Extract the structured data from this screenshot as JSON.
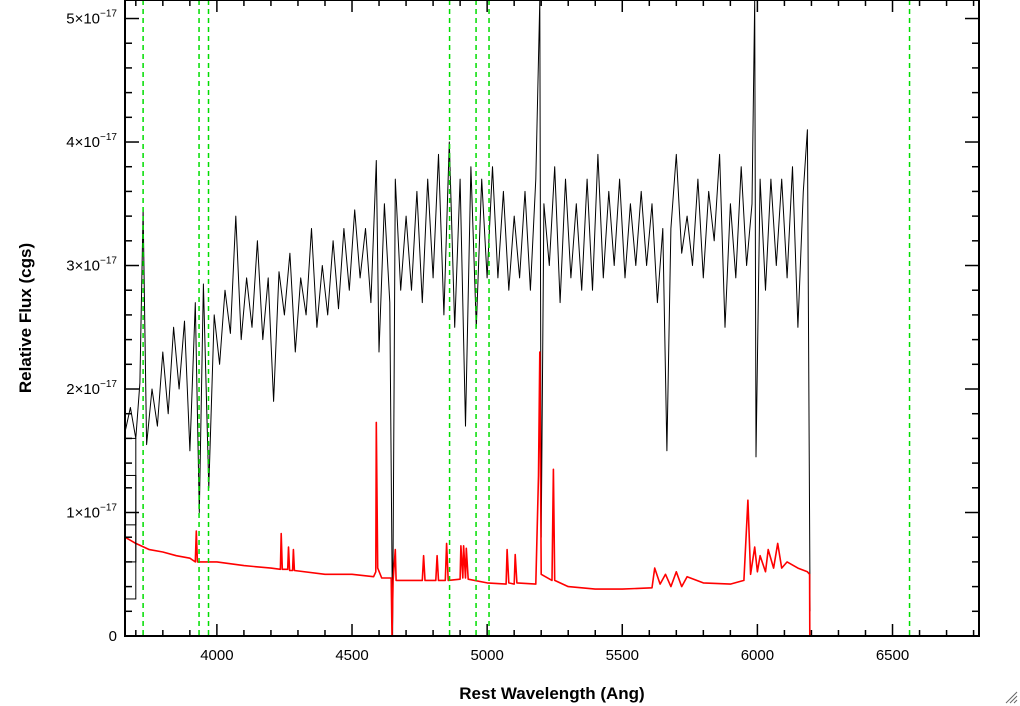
{
  "chart_data": {
    "type": "line",
    "xlabel": "Rest Wavelength (Ang)",
    "ylabel": "Relative Flux (cgs)",
    "xlim": [
      3660,
      6820
    ],
    "ylim": [
      0,
      5.15e-17
    ],
    "x_ticks": [
      {
        "value": 4000,
        "label": "4000"
      },
      {
        "value": 4500,
        "label": "4500"
      },
      {
        "value": 5000,
        "label": "5000"
      },
      {
        "value": 5500,
        "label": "5500"
      },
      {
        "value": 6000,
        "label": "6000"
      },
      {
        "value": 6500,
        "label": "6500"
      }
    ],
    "y_ticks": [
      {
        "value": 0,
        "mant": "0",
        "exp": ""
      },
      {
        "value": 1e-17,
        "mant": "1×10",
        "exp": "−17"
      },
      {
        "value": 2e-17,
        "mant": "2×10",
        "exp": "−17"
      },
      {
        "value": 3e-17,
        "mant": "3×10",
        "exp": "−17"
      },
      {
        "value": 4e-17,
        "mant": "4×10",
        "exp": "−17"
      },
      {
        "value": 5e-17,
        "mant": "5×10",
        "exp": "−17"
      }
    ],
    "vertical_lines": {
      "color": "#00dd00",
      "style": "dashed",
      "x": [
        3727,
        3934,
        3969,
        4861,
        4959,
        5007,
        6563
      ]
    },
    "series": [
      {
        "color": "#000000",
        "end_x": 6195,
        "points": [
          [
            3660,
            1.65e-17
          ],
          [
            3680,
            1.85e-17
          ],
          [
            3700,
            1.6e-17
          ],
          [
            3715,
            2.05e-17
          ],
          [
            3727,
            3.45e-17
          ],
          [
            3740,
            1.55e-17
          ],
          [
            3760,
            2e-17
          ],
          [
            3780,
            1.7e-17
          ],
          [
            3800,
            2.3e-17
          ],
          [
            3820,
            1.8e-17
          ],
          [
            3840,
            2.5e-17
          ],
          [
            3860,
            2e-17
          ],
          [
            3880,
            2.55e-17
          ],
          [
            3900,
            1.5e-17
          ],
          [
            3920,
            2.7e-17
          ],
          [
            3935,
            1e-17
          ],
          [
            3950,
            2.85e-17
          ],
          [
            3970,
            1.2e-17
          ],
          [
            3990,
            2.6e-17
          ],
          [
            4010,
            2.2e-17
          ],
          [
            4030,
            2.8e-17
          ],
          [
            4050,
            2.45e-17
          ],
          [
            4070,
            3.4e-17
          ],
          [
            4090,
            2.4e-17
          ],
          [
            4110,
            2.9e-17
          ],
          [
            4130,
            2.5e-17
          ],
          [
            4150,
            3.2e-17
          ],
          [
            4170,
            2.4e-17
          ],
          [
            4190,
            2.9e-17
          ],
          [
            4210,
            1.9e-17
          ],
          [
            4230,
            2.95e-17
          ],
          [
            4250,
            2.6e-17
          ],
          [
            4270,
            3.1e-17
          ],
          [
            4290,
            2.3e-17
          ],
          [
            4310,
            2.9e-17
          ],
          [
            4330,
            2.6e-17
          ],
          [
            4350,
            3.3e-17
          ],
          [
            4370,
            2.5e-17
          ],
          [
            4390,
            3e-17
          ],
          [
            4410,
            2.6e-17
          ],
          [
            4430,
            3.2e-17
          ],
          [
            4450,
            2.65e-17
          ],
          [
            4470,
            3.3e-17
          ],
          [
            4490,
            2.8e-17
          ],
          [
            4510,
            3.45e-17
          ],
          [
            4530,
            2.9e-17
          ],
          [
            4550,
            3.3e-17
          ],
          [
            4570,
            2.7e-17
          ],
          [
            4590,
            3.85e-17
          ],
          [
            4600,
            2.3e-17
          ],
          [
            4620,
            3.5e-17
          ],
          [
            4640,
            2.7e-17
          ],
          [
            4650,
            0.0
          ],
          [
            4660,
            3.7e-17
          ],
          [
            4680,
            2.8e-17
          ],
          [
            4700,
            3.4e-17
          ],
          [
            4720,
            2.8e-17
          ],
          [
            4740,
            3.6e-17
          ],
          [
            4760,
            2.7e-17
          ],
          [
            4780,
            3.7e-17
          ],
          [
            4800,
            2.9e-17
          ],
          [
            4820,
            3.9e-17
          ],
          [
            4840,
            2.6e-17
          ],
          [
            4860,
            4e-17
          ],
          [
            4880,
            2.5e-17
          ],
          [
            4900,
            3.7e-17
          ],
          [
            4920,
            1.7e-17
          ],
          [
            4940,
            3.8e-17
          ],
          [
            4960,
            2.5e-17
          ],
          [
            4980,
            3.7e-17
          ],
          [
            5000,
            2.9e-17
          ],
          [
            5020,
            3.8e-17
          ],
          [
            5040,
            2.9e-17
          ],
          [
            5060,
            3.6e-17
          ],
          [
            5080,
            2.8e-17
          ],
          [
            5100,
            3.4e-17
          ],
          [
            5120,
            2.9e-17
          ],
          [
            5140,
            3.6e-17
          ],
          [
            5160,
            2.8e-17
          ],
          [
            5180,
            3.7e-17
          ],
          [
            5195,
            5.15e-17
          ],
          [
            5200,
            8e-18
          ],
          [
            5210,
            3.5e-17
          ],
          [
            5230,
            3e-17
          ],
          [
            5250,
            3.8e-17
          ],
          [
            5270,
            2.7e-17
          ],
          [
            5290,
            3.7e-17
          ],
          [
            5310,
            2.9e-17
          ],
          [
            5330,
            3.5e-17
          ],
          [
            5350,
            2.8e-17
          ],
          [
            5370,
            3.7e-17
          ],
          [
            5390,
            2.8e-17
          ],
          [
            5410,
            3.9e-17
          ],
          [
            5430,
            2.9e-17
          ],
          [
            5450,
            3.6e-17
          ],
          [
            5470,
            3e-17
          ],
          [
            5490,
            3.7e-17
          ],
          [
            5510,
            2.9e-17
          ],
          [
            5530,
            3.5e-17
          ],
          [
            5550,
            3e-17
          ],
          [
            5570,
            3.6e-17
          ],
          [
            5590,
            3e-17
          ],
          [
            5610,
            3.5e-17
          ],
          [
            5630,
            2.7e-17
          ],
          [
            5650,
            3.3e-17
          ],
          [
            5665,
            1.5e-17
          ],
          [
            5680,
            3.3e-17
          ],
          [
            5700,
            3.9e-17
          ],
          [
            5720,
            3.1e-17
          ],
          [
            5740,
            3.4e-17
          ],
          [
            5760,
            3e-17
          ],
          [
            5780,
            3.7e-17
          ],
          [
            5800,
            2.9e-17
          ],
          [
            5820,
            3.6e-17
          ],
          [
            5840,
            3.2e-17
          ],
          [
            5860,
            3.9e-17
          ],
          [
            5880,
            2.5e-17
          ],
          [
            5900,
            3.5e-17
          ],
          [
            5920,
            2.9e-17
          ],
          [
            5940,
            3.8e-17
          ],
          [
            5960,
            3e-17
          ],
          [
            5980,
            3.5e-17
          ],
          [
            5990,
            5.15e-17
          ],
          [
            5995,
            1.45e-17
          ],
          [
            6010,
            3.7e-17
          ],
          [
            6030,
            2.8e-17
          ],
          [
            6050,
            3.7e-17
          ],
          [
            6070,
            3e-17
          ],
          [
            6090,
            3.7e-17
          ],
          [
            6110,
            2.9e-17
          ],
          [
            6130,
            3.8e-17
          ],
          [
            6150,
            2.5e-17
          ],
          [
            6170,
            3.6e-17
          ],
          [
            6185,
            4.1e-17
          ],
          [
            6195,
            2e-18
          ]
        ]
      },
      {
        "color": "#ff0000",
        "points": [
          [
            3660,
            8e-18
          ],
          [
            3700,
            7.5e-18
          ],
          [
            3750,
            7e-18
          ],
          [
            3800,
            6.8e-18
          ],
          [
            3850,
            6.5e-18
          ],
          [
            3900,
            6.3e-18
          ],
          [
            3920,
            6e-18
          ],
          [
            3924,
            8.5e-18
          ],
          [
            3928,
            6e-18
          ],
          [
            4000,
            6e-18
          ],
          [
            4100,
            5.7e-18
          ],
          [
            4200,
            5.5e-18
          ],
          [
            4235,
            5.4e-18
          ],
          [
            4238,
            8.3e-18
          ],
          [
            4242,
            5.4e-18
          ],
          [
            4262,
            5.4e-18
          ],
          [
            4265,
            7.2e-18
          ],
          [
            4269,
            5.3e-18
          ],
          [
            4280,
            5.3e-18
          ],
          [
            4283,
            7e-18
          ],
          [
            4287,
            5.3e-18
          ],
          [
            4400,
            5e-18
          ],
          [
            4500,
            5e-18
          ],
          [
            4580,
            4.8e-18
          ],
          [
            4588,
            5.2e-18
          ],
          [
            4590,
            1.73e-17
          ],
          [
            4595,
            5.5e-18
          ],
          [
            4610,
            4.7e-18
          ],
          [
            4645,
            4.7e-18
          ],
          [
            4648,
            0.0
          ],
          [
            4652,
            4.5e-18
          ],
          [
            4660,
            7e-18
          ],
          [
            4663,
            4.5e-18
          ],
          [
            4760,
            4.5e-18
          ],
          [
            4765,
            6.5e-18
          ],
          [
            4770,
            4.5e-18
          ],
          [
            4810,
            4.5e-18
          ],
          [
            4815,
            6.5e-18
          ],
          [
            4820,
            4.5e-18
          ],
          [
            4845,
            4.5e-18
          ],
          [
            4850,
            7.5e-18
          ],
          [
            4856,
            4.5e-18
          ],
          [
            4900,
            4.6e-18
          ],
          [
            4903,
            7.3e-18
          ],
          [
            4910,
            4.7e-18
          ],
          [
            4913,
            7.3e-18
          ],
          [
            4920,
            4.7e-18
          ],
          [
            4923,
            7.1e-18
          ],
          [
            4930,
            4.6e-18
          ],
          [
            5000,
            4.3e-18
          ],
          [
            5070,
            4.2e-18
          ],
          [
            5074,
            7e-18
          ],
          [
            5080,
            4.3e-18
          ],
          [
            5100,
            4.2e-18
          ],
          [
            5104,
            6.6e-18
          ],
          [
            5110,
            4.3e-18
          ],
          [
            5180,
            4.2e-18
          ],
          [
            5190,
            1.3e-17
          ],
          [
            5195,
            2.3e-17
          ],
          [
            5200,
            5e-18
          ],
          [
            5240,
            4.5e-18
          ],
          [
            5245,
            1.35e-17
          ],
          [
            5250,
            4.5e-18
          ],
          [
            5300,
            4e-18
          ],
          [
            5400,
            3.8e-18
          ],
          [
            5500,
            3.8e-18
          ],
          [
            5610,
            3.9e-18
          ],
          [
            5620,
            5.5e-18
          ],
          [
            5640,
            4.2e-18
          ],
          [
            5660,
            5e-18
          ],
          [
            5680,
            4e-18
          ],
          [
            5700,
            5.2e-18
          ],
          [
            5720,
            4e-18
          ],
          [
            5740,
            4.8e-18
          ],
          [
            5800,
            4.3e-18
          ],
          [
            5900,
            4.2e-18
          ],
          [
            5950,
            4.5e-18
          ],
          [
            5965,
            1.1e-17
          ],
          [
            5975,
            5e-18
          ],
          [
            5990,
            7.2e-18
          ],
          [
            6000,
            5.2e-18
          ],
          [
            6010,
            6.5e-18
          ],
          [
            6030,
            5.2e-18
          ],
          [
            6040,
            7e-18
          ],
          [
            6060,
            5.5e-18
          ],
          [
            6075,
            7.5e-18
          ],
          [
            6090,
            5.5e-18
          ],
          [
            6110,
            6e-18
          ],
          [
            6150,
            5.5e-18
          ],
          [
            6185,
            5.2e-18
          ],
          [
            6193,
            5e-18
          ],
          [
            6194,
            0.0
          ],
          [
            6820,
            0.0
          ]
        ]
      }
    ],
    "left_edge_box": [
      {
        "x0": 3660,
        "x1": 3700,
        "y0": 3e-18,
        "y1": 1e-17
      },
      {
        "x0": 3660,
        "x1": 3700,
        "y0": 6e-18,
        "y1": 1.3e-17
      },
      {
        "x0": 3660,
        "x1": 3700,
        "y0": 9e-18,
        "y1": 1.6e-17
      }
    ]
  }
}
